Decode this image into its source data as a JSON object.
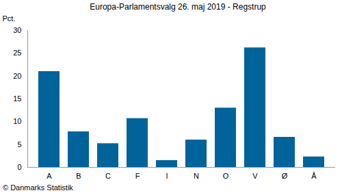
{
  "chart_data": {
    "type": "bar",
    "title": "Europa-Parlamentsvalg 26. maj 2019 - Regstrup",
    "y_label": "Pct.",
    "caption": "© Danmarks Statistik",
    "categories": [
      "A",
      "B",
      "C",
      "F",
      "I",
      "N",
      "O",
      "V",
      "Ø",
      "Å"
    ],
    "values": [
      21.0,
      7.8,
      5.2,
      10.7,
      1.5,
      6.0,
      13.0,
      26.2,
      6.6,
      2.3
    ],
    "color": "#00639a",
    "ylim": [
      0,
      30
    ],
    "yticks": [
      0,
      5,
      10,
      15,
      20,
      25,
      30
    ],
    "grid": false
  }
}
